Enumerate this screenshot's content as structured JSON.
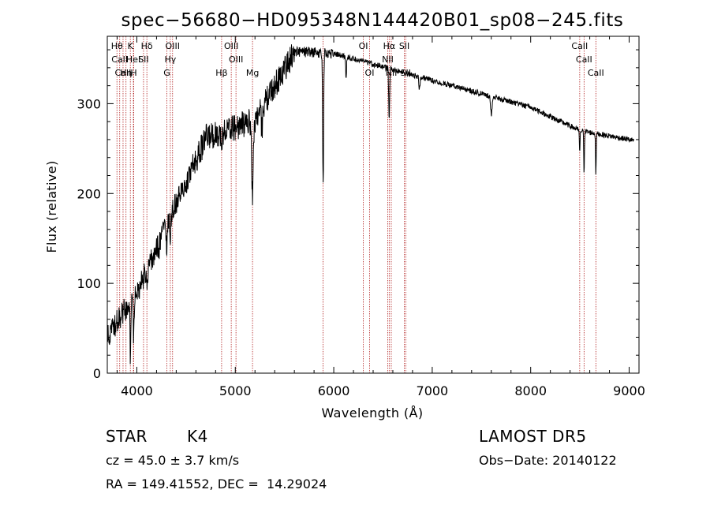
{
  "chart_data": {
    "type": "line",
    "title": "spec−56680−HD095348N144420B01_sp08−245.fits",
    "xlabel": "Wavelength (Å)",
    "ylabel": "Flux (relative)",
    "xlim": [
      3700,
      9100
    ],
    "ylim": [
      0,
      375
    ],
    "xticks": [
      4000,
      5000,
      6000,
      7000,
      8000,
      9000
    ],
    "yticks": [
      0,
      100,
      200,
      300
    ],
    "line_color": "#000000",
    "marker_color": "#b22222",
    "lines": [
      {
        "label": "Hθ",
        "wl": 3798,
        "row": 0
      },
      {
        "label": "CaII",
        "wl": 3826,
        "row": 1
      },
      {
        "label": "CaII",
        "wl": 3860,
        "row": 2
      },
      {
        "label": "K",
        "wl": 3934,
        "row": 0
      },
      {
        "label": "HeI",
        "wl": 3965,
        "row": 1
      },
      {
        "label": "Hη",
        "wl": 3890,
        "row": 2
      },
      {
        "label": "H",
        "wl": 3969,
        "row": 2
      },
      {
        "label": "Hδ",
        "wl": 4102,
        "row": 0
      },
      {
        "label": "SII",
        "wl": 4068,
        "row": 1
      },
      {
        "label": "OIII",
        "wl": 4363,
        "row": 0
      },
      {
        "label": "Hγ",
        "wl": 4340,
        "row": 1
      },
      {
        "label": "G",
        "wl": 4305,
        "row": 2
      },
      {
        "label": "Hβ",
        "wl": 4861,
        "row": 2
      },
      {
        "label": "OIII",
        "wl": 4959,
        "row": 0
      },
      {
        "label": "OIII",
        "wl": 5007,
        "row": 1
      },
      {
        "label": "Mg",
        "wl": 5175,
        "row": 2
      },
      {
        "label": "",
        "wl": 5892,
        "row": -1
      },
      {
        "label": "OI",
        "wl": 6300,
        "row": 0
      },
      {
        "label": "OI",
        "wl": 6364,
        "row": 2
      },
      {
        "label": "Hα",
        "wl": 6563,
        "row": 0
      },
      {
        "label": "NII",
        "wl": 6548,
        "row": 1
      },
      {
        "label": "NII",
        "wl": 6584,
        "row": 2
      },
      {
        "label": "SII",
        "wl": 6717,
        "row": 0
      },
      {
        "label": "SII",
        "wl": 6731,
        "row": 2
      },
      {
        "label": "CaII",
        "wl": 8498,
        "row": 0
      },
      {
        "label": "CaII",
        "wl": 8542,
        "row": 1
      },
      {
        "label": "CaII",
        "wl": 8662,
        "row": 2
      }
    ],
    "dips": [
      {
        "wl": 3934,
        "depth": 60,
        "width": 6
      },
      {
        "wl": 3969,
        "depth": 50,
        "width": 6
      },
      {
        "wl": 4102,
        "depth": 20,
        "width": 8
      },
      {
        "wl": 4226,
        "depth": 20,
        "width": 6
      },
      {
        "wl": 4305,
        "depth": 25,
        "width": 8
      },
      {
        "wl": 4340,
        "depth": 20,
        "width": 8
      },
      {
        "wl": 4861,
        "depth": 25,
        "width": 8
      },
      {
        "wl": 5175,
        "depth": 80,
        "width": 12
      },
      {
        "wl": 5270,
        "depth": 25,
        "width": 8
      },
      {
        "wl": 5892,
        "depth": 150,
        "width": 7
      },
      {
        "wl": 6125,
        "depth": 25,
        "width": 6
      },
      {
        "wl": 6563,
        "depth": 55,
        "width": 7
      },
      {
        "wl": 6870,
        "depth": 15,
        "width": 8
      },
      {
        "wl": 7600,
        "depth": 20,
        "width": 10
      },
      {
        "wl": 8498,
        "depth": 25,
        "width": 5
      },
      {
        "wl": 8542,
        "depth": 45,
        "width": 5
      },
      {
        "wl": 8662,
        "depth": 45,
        "width": 5
      }
    ]
  },
  "info": {
    "object_class": "STAR",
    "subclass": "K4",
    "survey": "LAMOST DR5",
    "velocity": "cz = 45.0 ± 3.7 km/s",
    "obs_date": "Obs−Date: 20140122",
    "coords": "RA = 149.41552, DEC =  14.29024"
  }
}
